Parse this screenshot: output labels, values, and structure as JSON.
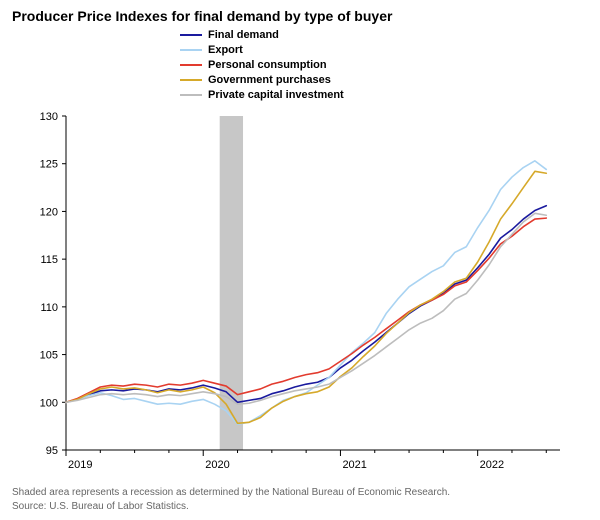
{
  "title": "Producer Price Indexes for final demand by type of buyer",
  "footnote1": "Shaded area represents a recession as determined by the National Bureau of Economic Research.",
  "footnote2": "Source: U.S. Bureau of Labor Statistics.",
  "chart": {
    "type": "line",
    "background_color": "#ffffff",
    "axis_color": "#000000",
    "grid_color": "#d9d9d9",
    "recession_fill": "#c7c7c7",
    "title_fontsize": 14,
    "label_fontsize": 11,
    "line_width": 1.6,
    "x": {
      "min": 2019.0,
      "max": 2022.6,
      "ticks": [
        2019,
        2020,
        2021,
        2022
      ],
      "tick_labels": [
        "2019",
        "2020",
        "2021",
        "2022"
      ]
    },
    "y": {
      "min": 95,
      "max": 130,
      "ticks": [
        95,
        100,
        105,
        110,
        115,
        120,
        125,
        130
      ],
      "tick_labels": [
        "95",
        "100",
        "105",
        "110",
        "115",
        "120",
        "125",
        "130"
      ]
    },
    "recession": {
      "start": 2020.12,
      "end": 2020.29
    },
    "x_values": [
      2019.0,
      2019.083,
      2019.167,
      2019.25,
      2019.333,
      2019.417,
      2019.5,
      2019.583,
      2019.667,
      2019.75,
      2019.833,
      2019.917,
      2020.0,
      2020.083,
      2020.167,
      2020.25,
      2020.333,
      2020.417,
      2020.5,
      2020.583,
      2020.667,
      2020.75,
      2020.833,
      2020.917,
      2021.0,
      2021.083,
      2021.167,
      2021.25,
      2021.333,
      2021.417,
      2021.5,
      2021.583,
      2021.667,
      2021.75,
      2021.833,
      2021.917,
      2022.0,
      2022.083,
      2022.167,
      2022.25,
      2022.333,
      2022.417,
      2022.5
    ],
    "series": [
      {
        "name": "Final demand",
        "color": "#1a1a9e",
        "values": [
          100,
          100.3,
          100.8,
          101.2,
          101.3,
          101.2,
          101.4,
          101.3,
          101.1,
          101.4,
          101.3,
          101.5,
          101.8,
          101.5,
          101.1,
          100.0,
          100.2,
          100.4,
          100.9,
          101.2,
          101.6,
          101.9,
          102.1,
          102.6,
          103.6,
          104.4,
          105.4,
          106.3,
          107.3,
          108.3,
          109.3,
          110.1,
          110.7,
          111.4,
          112.4,
          112.8,
          114.1,
          115.5,
          117.2,
          118.1,
          119.2,
          120.1,
          120.6
        ]
      },
      {
        "name": "Export",
        "color": "#a9d3f2",
        "values": [
          100,
          100.3,
          100.7,
          101.0,
          100.7,
          100.3,
          100.4,
          100.1,
          99.8,
          99.9,
          99.8,
          100.1,
          100.3,
          99.8,
          99.1,
          97.7,
          97.9,
          98.6,
          99.4,
          100.2,
          100.6,
          101.0,
          101.8,
          102.6,
          103.9,
          105.2,
          106.2,
          107.3,
          109.3,
          110.8,
          112.1,
          112.9,
          113.7,
          114.3,
          115.7,
          116.3,
          118.3,
          120.1,
          122.3,
          123.6,
          124.6,
          125.3,
          124.4
        ]
      },
      {
        "name": "Personal consumption",
        "color": "#e23b2e",
        "values": [
          100,
          100.4,
          101.0,
          101.6,
          101.8,
          101.7,
          101.9,
          101.8,
          101.6,
          101.9,
          101.8,
          102.0,
          102.3,
          102.0,
          101.7,
          100.8,
          101.1,
          101.4,
          101.9,
          102.2,
          102.6,
          102.9,
          103.1,
          103.5,
          104.3,
          105.1,
          106.0,
          106.8,
          107.7,
          108.6,
          109.5,
          110.2,
          110.7,
          111.3,
          112.2,
          112.6,
          113.8,
          115.1,
          116.6,
          117.4,
          118.4,
          119.2,
          119.3
        ]
      },
      {
        "name": "Government purchases",
        "color": "#d6a92a",
        "values": [
          100,
          100.3,
          100.9,
          101.4,
          101.6,
          101.4,
          101.5,
          101.3,
          101.0,
          101.3,
          101.1,
          101.3,
          101.6,
          101.0,
          99.8,
          97.8,
          97.9,
          98.4,
          99.4,
          100.1,
          100.6,
          100.9,
          101.1,
          101.6,
          102.7,
          103.6,
          104.8,
          105.9,
          107.2,
          108.3,
          109.4,
          110.2,
          110.8,
          111.6,
          112.6,
          113.0,
          114.7,
          116.8,
          119.2,
          120.8,
          122.5,
          124.2,
          124.0
        ]
      },
      {
        "name": "Private capital investment",
        "color": "#bdbdbd",
        "values": [
          100,
          100.2,
          100.5,
          100.8,
          100.9,
          100.8,
          100.9,
          100.8,
          100.6,
          100.8,
          100.7,
          100.9,
          101.1,
          100.9,
          100.6,
          99.8,
          99.9,
          100.2,
          100.6,
          100.9,
          101.2,
          101.4,
          101.6,
          101.9,
          102.6,
          103.3,
          104.1,
          104.9,
          105.8,
          106.7,
          107.6,
          108.3,
          108.8,
          109.6,
          110.8,
          111.4,
          112.8,
          114.4,
          116.3,
          117.6,
          118.9,
          119.8,
          119.6
        ]
      }
    ]
  },
  "legend": [
    {
      "label": "Final demand",
      "color": "#1a1a9e"
    },
    {
      "label": "Export",
      "color": "#a9d3f2"
    },
    {
      "label": "Personal consumption",
      "color": "#e23b2e"
    },
    {
      "label": "Government purchases",
      "color": "#d6a92a"
    },
    {
      "label": "Private capital investment",
      "color": "#bdbdbd"
    }
  ]
}
